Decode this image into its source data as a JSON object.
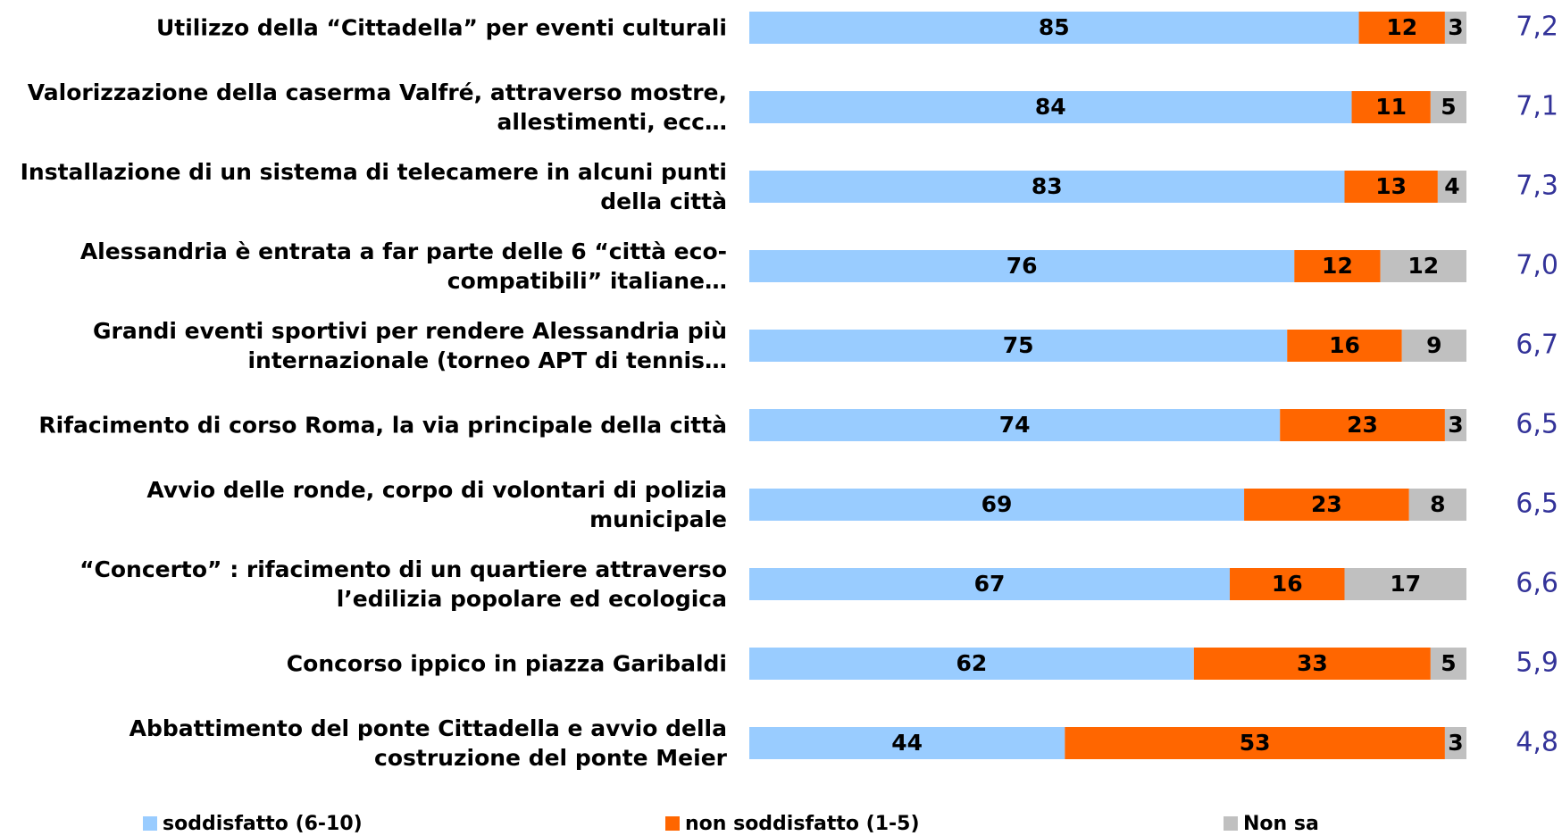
{
  "chart_data": {
    "type": "stacked_bar_horizontal",
    "categories": [
      "Utilizzo della “Cittadella” per eventi culturali",
      "Valorizzazione della caserma Valfré, attraverso mostre, allestimenti, ecc…",
      "Installazione di un sistema di telecamere in alcuni punti della città",
      "Alessandria è entrata a far parte delle 6 “città eco-compatibili” italiane…",
      "Grandi eventi sportivi per rendere Alessandria più internazionale (torneo APT di tennis…",
      "Rifacimento di corso Roma, la via principale della città",
      "Avvio delle ronde, corpo di volontari di polizia municipale",
      "“Concerto” : rifacimento di un quartiere attraverso l’edilizia popolare ed ecologica",
      "Concorso ippico in piazza Garibaldi",
      "Abbattimento del ponte Cittadella e avvio della costruzione del ponte Meier"
    ],
    "series": [
      {
        "name": "soddisfatto (6-10)",
        "color": "#99ccff",
        "values": [
          85,
          84,
          83,
          76,
          75,
          74,
          69,
          67,
          62,
          44
        ]
      },
      {
        "name": "non soddisfatto (1-5)",
        "color": "#ff6600",
        "values": [
          12,
          11,
          13,
          12,
          16,
          23,
          23,
          16,
          33,
          53
        ]
      },
      {
        "name": "Non sa",
        "color": "#c0c0c0",
        "values": [
          3,
          5,
          4,
          12,
          9,
          3,
          8,
          17,
          5,
          3
        ]
      }
    ],
    "mean_scores": {
      "color": "#333399",
      "values": [
        7.2,
        7.1,
        7.3,
        7.0,
        6.7,
        6.5,
        6.5,
        6.6,
        5.9,
        4.8
      ],
      "value_labels": [
        "7,2",
        "7,1",
        "7,3",
        "7,0",
        "6,7",
        "6,5",
        "6,5",
        "6,6",
        "5,9",
        "4,8"
      ]
    },
    "xlim": [
      0,
      100
    ]
  }
}
